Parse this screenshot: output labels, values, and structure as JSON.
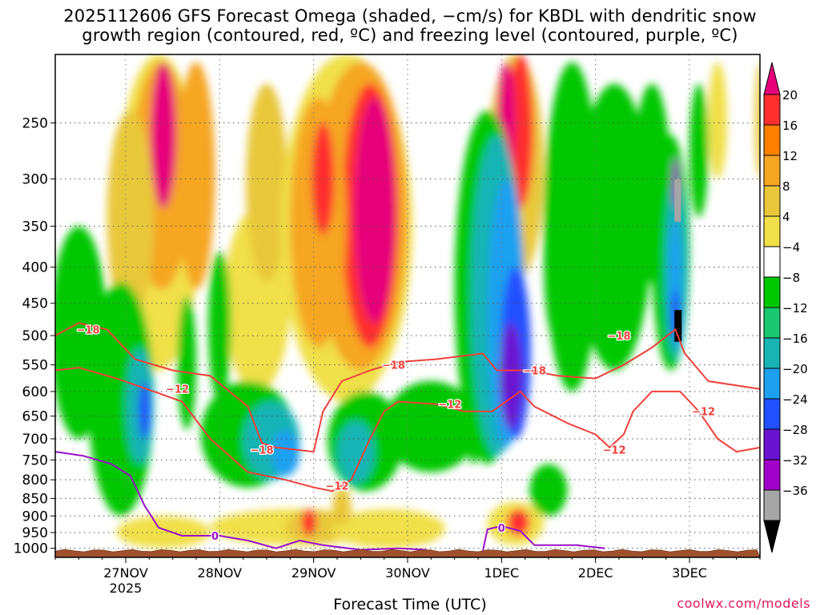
{
  "chart_data": {
    "type": "heatmap",
    "title_line1": "2025112606 GFS Forecast Omega (shaded, −cm/s) for KBDL with dendritic snow",
    "title_line2": "growth region (contoured, red, ºC) and freezing level (contoured, purple, ºC)",
    "xlabel": "Forecast Time (UTC)",
    "credit": "coolwx.com/models",
    "x_ticks": [
      {
        "label": "27NOV",
        "sublabel": "2025",
        "day": 1
      },
      {
        "label": "28NOV",
        "sublabel": "",
        "day": 2
      },
      {
        "label": "29NOV",
        "sublabel": "",
        "day": 3
      },
      {
        "label": "30NOV",
        "sublabel": "",
        "day": 4
      },
      {
        "label": "1DEC",
        "sublabel": "",
        "day": 5
      },
      {
        "label": "2DEC",
        "sublabel": "",
        "day": 6
      },
      {
        "label": "3DEC",
        "sublabel": "",
        "day": 7
      }
    ],
    "x_range_days": [
      0.25,
      7.75
    ],
    "y_range_hpa": [
      200,
      1030
    ],
    "y_ticks": [
      250,
      300,
      350,
      400,
      450,
      500,
      550,
      600,
      650,
      700,
      750,
      800,
      850,
      900,
      950,
      1000
    ],
    "colorbar": {
      "labels": [
        "20",
        "16",
        "12",
        "8",
        "4",
        "−4",
        "−8",
        "−12",
        "−16",
        "−20",
        "−24",
        "−28",
        "−32",
        "−36"
      ],
      "colors": [
        "#e6007a",
        "#ff2f2f",
        "#ff7f00",
        "#f5a623",
        "#e8c83a",
        "#f0e04a",
        "#ffffff",
        "#00c800",
        "#19c870",
        "#18b4b4",
        "#1ea0f0",
        "#2050ff",
        "#6a14d2",
        "#a000c8",
        "#a6a6a6",
        "#000000"
      ]
    },
    "contour_labels": {
      "dgz": [
        "−18",
        "−12",
        "−18",
        "−18",
        "−12",
        "−18",
        "−12",
        "−18",
        "−12",
        "−12"
      ],
      "freezing": [
        "0",
        "0"
      ]
    }
  }
}
